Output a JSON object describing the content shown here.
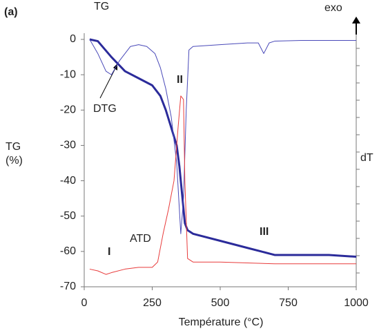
{
  "chart_data": {
    "type": "line",
    "panel_label": "(a)",
    "x_label": "Température (°C)",
    "y_label": "TG (%)",
    "y2_label": "dT",
    "annotations": [
      "I",
      "II",
      "III",
      "exo"
    ],
    "xlim": [
      0,
      1000
    ],
    "xticks": [
      0,
      250,
      500,
      750,
      1000
    ],
    "ylim": [
      -70,
      0
    ],
    "yticks": [
      0,
      -10,
      -20,
      -30,
      -40,
      -50,
      -60,
      -70
    ],
    "series": [
      {
        "name": "TG",
        "color": "#2b2b9a",
        "x": [
          20,
          50,
          100,
          150,
          200,
          250,
          280,
          300,
          320,
          340,
          350,
          360,
          370,
          380,
          400,
          500,
          600,
          650,
          700,
          800,
          900,
          1000
        ],
        "values": [
          0,
          -0.5,
          -5,
          -9,
          -11,
          -13,
          -16,
          -20,
          -25,
          -30,
          -36,
          -44,
          -52,
          -54,
          -55,
          -57,
          -59,
          -60,
          -61,
          -61,
          -61,
          -61.5
        ]
      },
      {
        "name": "DTG",
        "color": "#4848b8",
        "x": [
          20,
          50,
          80,
          100,
          130,
          170,
          200,
          230,
          260,
          280,
          300,
          320,
          340,
          355,
          365,
          375,
          385,
          400,
          500,
          600,
          640,
          660,
          680,
          700,
          800,
          1000
        ],
        "values": [
          0,
          -4,
          -9,
          -10,
          -6,
          -2,
          -1.5,
          -2,
          -4,
          -8,
          -14,
          -22,
          -35,
          -55,
          -45,
          -20,
          -3,
          -2,
          -1.5,
          -1,
          -1,
          -4,
          -1,
          -0.5,
          -0.3,
          -0.3
        ]
      },
      {
        "name": "ATD",
        "color": "#e83a3a",
        "x": [
          20,
          50,
          80,
          100,
          150,
          200,
          250,
          270,
          290,
          310,
          330,
          345,
          355,
          365,
          370,
          380,
          400,
          500,
          700,
          1000
        ],
        "values": [
          -65,
          -65.5,
          -66.5,
          -66,
          -65,
          -64.5,
          -64.5,
          -63,
          -55,
          -48,
          -40,
          -25,
          -16,
          -17,
          -40,
          -62,
          -63,
          -63,
          -63.5,
          -63.5
        ]
      }
    ]
  }
}
